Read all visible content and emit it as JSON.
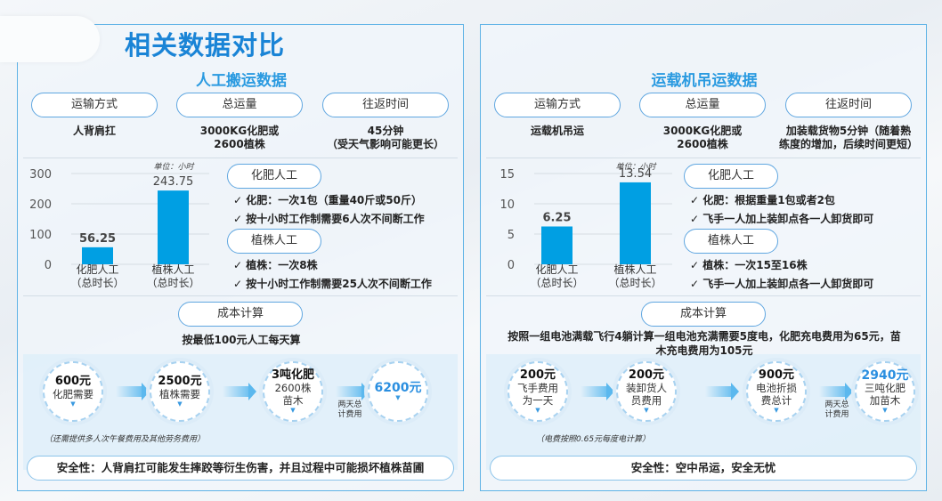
{
  "page_title": "相关数据对比",
  "colors": {
    "accent": "#1a84d6",
    "bar": "#009fe3",
    "border": "#5fb3e6"
  },
  "left": {
    "section_title": "人工搬运数据",
    "pills": [
      "运输方式",
      "总运量",
      "往返时间"
    ],
    "values": [
      "人背肩扛",
      "3000KG化肥或\n2600植株",
      "45分钟\n（受天气影响可能更长）"
    ],
    "groups": [
      {
        "label": "化肥人工",
        "items": [
          "✓ 化肥：一次1包（重量40斤或50斤）",
          "✓ 按十小时工作制需要6人次不间断工作"
        ]
      },
      {
        "label": "植株人工",
        "items": [
          "✓ 植株：一次8株",
          "✓ 按十小时工作制需要25人次不间断工作"
        ]
      }
    ],
    "cost_label": "成本计算",
    "cost_text": "按最低100元人工每天算",
    "circles": [
      {
        "amount": "600元",
        "desc": "化肥需要"
      },
      {
        "amount": "2500元",
        "desc": "植株需要"
      },
      {
        "amount": "3吨化肥",
        "desc": "2600株\n苗木"
      },
      {
        "amount": "6200元",
        "desc": ""
      }
    ],
    "total_label": "两天总\n计费用",
    "note": "（还需提供多人次午餐费用及其他劳务费用）",
    "safety": "安全性：人背肩扛可能发生摔跤等衍生伤害，并且过程中可能损坏植株苗圃"
  },
  "right": {
    "section_title": "运载机吊运数据",
    "pills": [
      "运输方式",
      "总运量",
      "往返时间"
    ],
    "values": [
      "运载机吊运",
      "3000KG化肥或\n2600植株",
      "加装载货物5分钟（随着熟\n练度的增加，后续时间更短）"
    ],
    "groups": [
      {
        "label": "化肥人工",
        "items": [
          "✓ 化肥：根据重量1包或者2包",
          "✓ 飞手一人加上装卸点各一人卸货即可"
        ]
      },
      {
        "label": "植株人工",
        "items": [
          "✓ 植株：一次15至16株",
          "✓ 飞手一人加上装卸点各一人卸货即可"
        ]
      }
    ],
    "cost_label": "成本计算",
    "cost_text": "按照一组电池满载飞行4躺计算一组电池充满需要5度电，化肥充电费用为65元，苗\n木充电费用为105元",
    "circles": [
      {
        "amount": "200元",
        "desc": "飞手费用\n为一天"
      },
      {
        "amount": "200元",
        "desc": "装卸货人\n员费用"
      },
      {
        "amount": "900元",
        "desc": "电池折损\n费总计"
      },
      {
        "amount": "2940元",
        "desc": "三吨化肥\n加苗木"
      }
    ],
    "total_label": "两天总\n计费用",
    "note": "（电费按照0.65元每度电计算）",
    "safety": "安全性：空中吊运，安全无忧"
  },
  "chart_data": [
    {
      "type": "bar",
      "unit_label": "单位：小时",
      "categories": [
        "化肥人工\n（总时长）",
        "植株人工\n（总时长）"
      ],
      "values": [
        56.25,
        243.75
      ],
      "ylim": [
        0,
        300
      ],
      "yticks": [
        0,
        100,
        200,
        300
      ],
      "grid": true
    },
    {
      "type": "bar",
      "unit_label": "单位：小时",
      "categories": [
        "化肥人工\n（总时长）",
        "植株人工\n（总时长）"
      ],
      "values": [
        6.25,
        13.54
      ],
      "ylim": [
        0,
        15
      ],
      "yticks": [
        0,
        5,
        10,
        15
      ],
      "grid": true
    }
  ]
}
